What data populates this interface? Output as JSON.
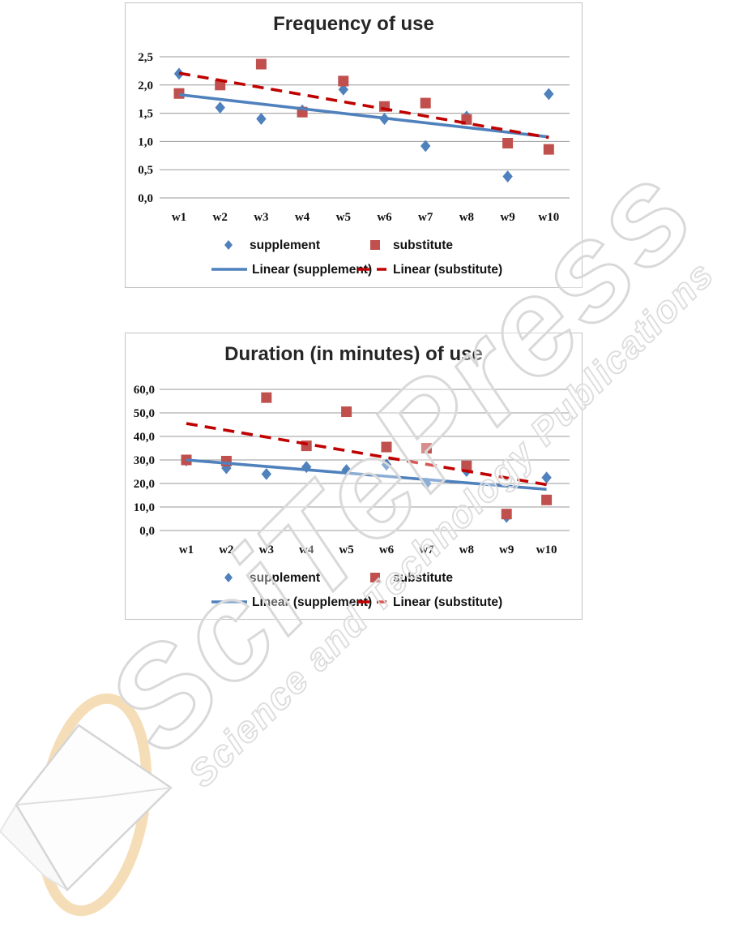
{
  "watermark": {
    "big_text": "SciTePress",
    "small_text": "Science and Technology Publications",
    "outline_color": "#d8d8d8"
  },
  "logo": {
    "ring_color": "#f2d3a0",
    "sheet_border_color": "#c8c8c8",
    "sheet_fill_color": "#fdfdfd"
  },
  "chart_data": [
    {
      "type": "scatter",
      "title": "Frequency of use",
      "categories": [
        "w1",
        "w2",
        "w3",
        "w4",
        "w5",
        "w6",
        "w7",
        "w8",
        "w9",
        "w10"
      ],
      "series": [
        {
          "name": "supplement",
          "marker": "diamond",
          "color": "#4f81bd",
          "values": [
            2.2,
            1.6,
            1.4,
            1.55,
            1.92,
            1.4,
            0.92,
            1.44,
            0.38,
            1.84
          ]
        },
        {
          "name": "substitute",
          "marker": "square",
          "color": "#c0504d",
          "values": [
            1.85,
            2.0,
            2.37,
            1.52,
            2.07,
            1.62,
            1.68,
            1.39,
            0.97,
            0.86
          ]
        }
      ],
      "trendlines": [
        {
          "name": "Linear (supplement)",
          "color": "#4f81bd",
          "dashed": false,
          "start": 1.83,
          "end": 1.08
        },
        {
          "name": "Linear (substitute)",
          "color": "#c00000",
          "dashed": true,
          "start": 2.21,
          "end": 1.07
        }
      ],
      "y_axis": {
        "min": 0,
        "max": 2.5,
        "ticks": [
          {
            "v": 2.5,
            "label": "2,5"
          },
          {
            "v": 2.0,
            "label": "2,0"
          },
          {
            "v": 1.5,
            "label": "1,5"
          },
          {
            "v": 1.0,
            "label": "1,0"
          },
          {
            "v": 0.5,
            "label": "0,5"
          },
          {
            "v": 0.0,
            "label": "0,0"
          }
        ]
      },
      "legend": [
        "supplement",
        "substitute",
        "Linear (supplement)",
        "Linear (substitute)"
      ],
      "grid": true,
      "legend_position": "bottom"
    },
    {
      "type": "scatter",
      "title": "Duration (in minutes) of use",
      "categories": [
        "w1",
        "w2",
        "w3",
        "w4",
        "w5",
        "w6",
        "w7",
        "w8",
        "w9",
        "w10"
      ],
      "series": [
        {
          "name": "supplement",
          "marker": "diamond",
          "color": "#4f81bd",
          "values": [
            29.8,
            26.5,
            24.0,
            27.0,
            25.7,
            28.0,
            20.0,
            25.3,
            5.8,
            22.5
          ]
        },
        {
          "name": "substitute",
          "marker": "square",
          "color": "#c0504d",
          "values": [
            30.0,
            29.5,
            56.5,
            36.0,
            50.5,
            35.5,
            35.0,
            27.5,
            7.0,
            13.0
          ]
        }
      ],
      "trendlines": [
        {
          "name": "Linear (supplement)",
          "color": "#4f81bd",
          "dashed": false,
          "start": 30.0,
          "end": 17.5
        },
        {
          "name": "Linear (substitute)",
          "color": "#c00000",
          "dashed": true,
          "start": 45.5,
          "end": 19.5
        }
      ],
      "y_axis": {
        "min": 0,
        "max": 60,
        "ticks": [
          {
            "v": 60,
            "label": "60,0"
          },
          {
            "v": 50,
            "label": "50,0"
          },
          {
            "v": 40,
            "label": "40,0"
          },
          {
            "v": 30,
            "label": "30,0"
          },
          {
            "v": 20,
            "label": "20,0"
          },
          {
            "v": 10,
            "label": "10,0"
          },
          {
            "v": 0,
            "label": "0,0"
          }
        ]
      },
      "legend": [
        "supplement",
        "substitute",
        "Linear (supplement)",
        "Linear (substitute)"
      ],
      "grid": true,
      "legend_position": "bottom"
    }
  ]
}
